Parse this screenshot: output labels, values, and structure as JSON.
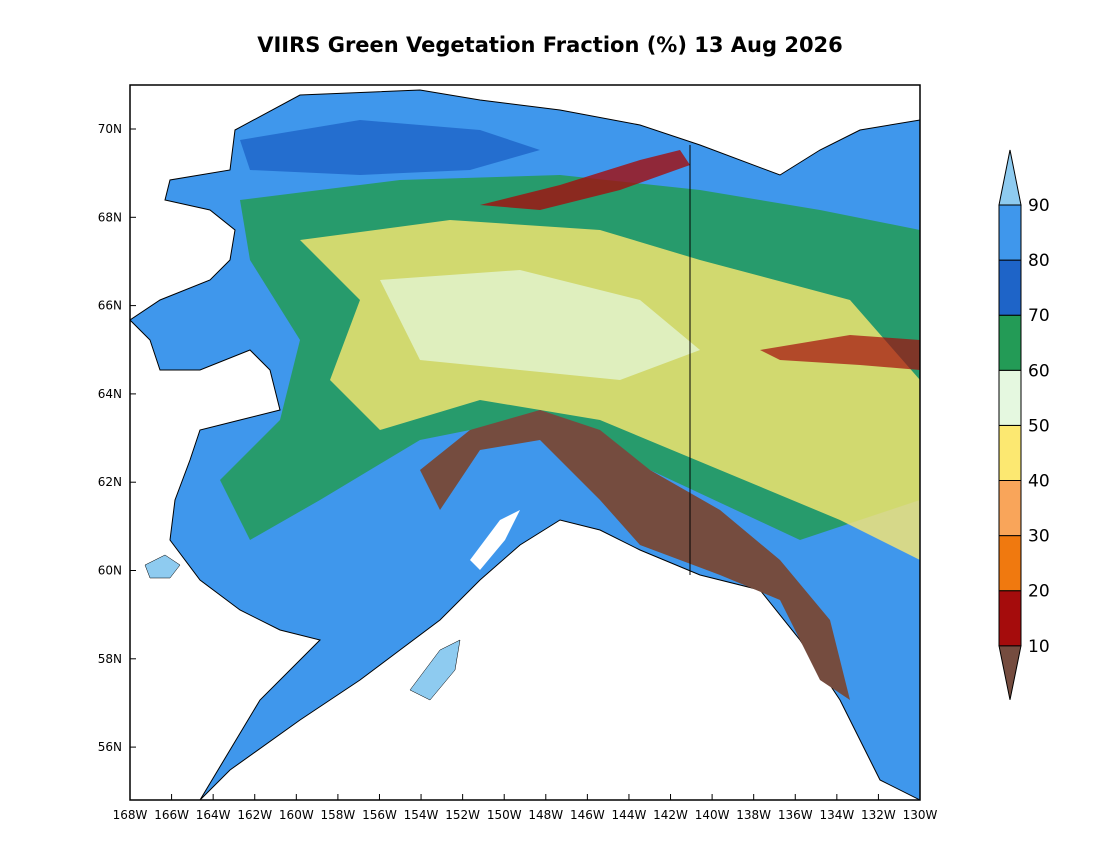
{
  "title": "VIIRS Green Vegetation Fraction (%) 13 Aug 2026",
  "map": {
    "lon_labels": [
      "168W",
      "166W",
      "164W",
      "162W",
      "160W",
      "158W",
      "156W",
      "154W",
      "152W",
      "150W",
      "148W",
      "146W",
      "144W",
      "142W",
      "140W",
      "138W",
      "136W",
      "134W",
      "132W",
      "130W"
    ],
    "lat_labels": [
      "70N",
      "68N",
      "66N",
      "64N",
      "62N",
      "60N",
      "58N",
      "56N"
    ]
  },
  "colorbar": {
    "levels": [
      10,
      20,
      30,
      40,
      50,
      60,
      70,
      80,
      90
    ],
    "colors": [
      "#754c3f",
      "#a50c0c",
      "#f0790f",
      "#f9a55a",
      "#fce871",
      "#e5f8e0",
      "#239b56",
      "#1e64c8",
      "#3f97ec",
      "#8ecbf0"
    ]
  }
}
